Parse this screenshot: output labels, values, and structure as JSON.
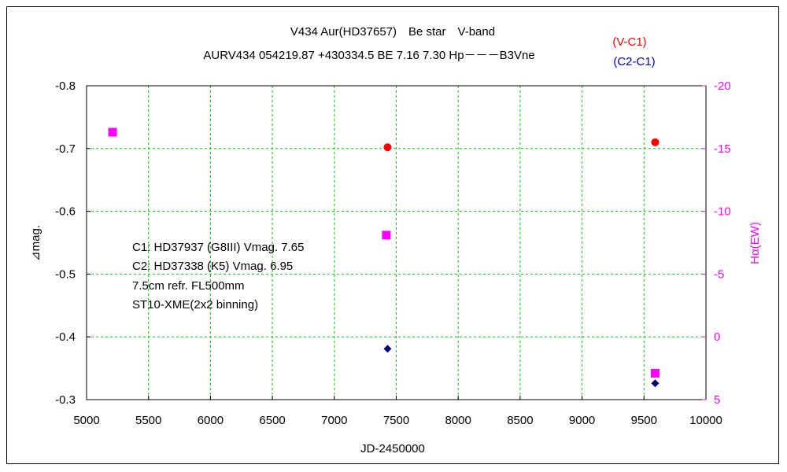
{
  "chart_data": {
    "type": "scatter",
    "title": "V434 Aur(HD37657)　Be star　V-band",
    "subtitle": "AURV434 054219.87 +430334.5 BE 7.16 7.30 Hp－－－B3Vne",
    "xlabel": "JD-2450000",
    "ylabel": "⊿mag.",
    "y2label": "Hα(EW)",
    "xlim": [
      5000,
      10000
    ],
    "ylim": [
      -0.3,
      -0.8
    ],
    "y2lim": [
      5,
      -20
    ],
    "x_ticks": [
      5000,
      5500,
      6000,
      6500,
      7000,
      7500,
      8000,
      8500,
      9000,
      9500,
      10000
    ],
    "y_ticks": [
      -0.8,
      -0.7,
      -0.6,
      -0.5,
      -0.4,
      -0.3
    ],
    "y_tick_labels": [
      "-0.8",
      "-0.7",
      "-0.6",
      "-0.5",
      "-0.4",
      "-0.3"
    ],
    "y2_ticks": [
      -20,
      -15,
      -10,
      -5,
      0,
      5
    ],
    "y2_tick_labels": [
      "-20",
      "-15",
      "-10",
      "-5",
      "0",
      "5"
    ],
    "grid": true,
    "legend_position": "top-right",
    "series": [
      {
        "name": "(V-C1)",
        "axis": "left",
        "color": "#ff0000",
        "marker": "circle",
        "x": [
          7430,
          9590
        ],
        "y": [
          -0.702,
          -0.71
        ]
      },
      {
        "name": "(C2-C1)",
        "axis": "left",
        "color": "#000080",
        "marker": "diamond",
        "x": [
          7430,
          9590
        ],
        "y": [
          -0.381,
          -0.326
        ]
      },
      {
        "axis": "right",
        "color": "#ff00ff",
        "marker": "square",
        "x": [
          5210,
          7420,
          9590
        ],
        "y": [
          -16.3,
          -8.1,
          2.9
        ]
      }
    ],
    "annotations": [
      "C1: HD37937 (G8III) Vmag. 7.65",
      "C2: HD37338 (K5) Vmag. 6.95",
      "7.5cm refr. FL500mm",
      "ST10-XME(2x2 binning)"
    ],
    "colors": {
      "grid": "#00cc00",
      "right_axis": "#ff00ff"
    }
  }
}
